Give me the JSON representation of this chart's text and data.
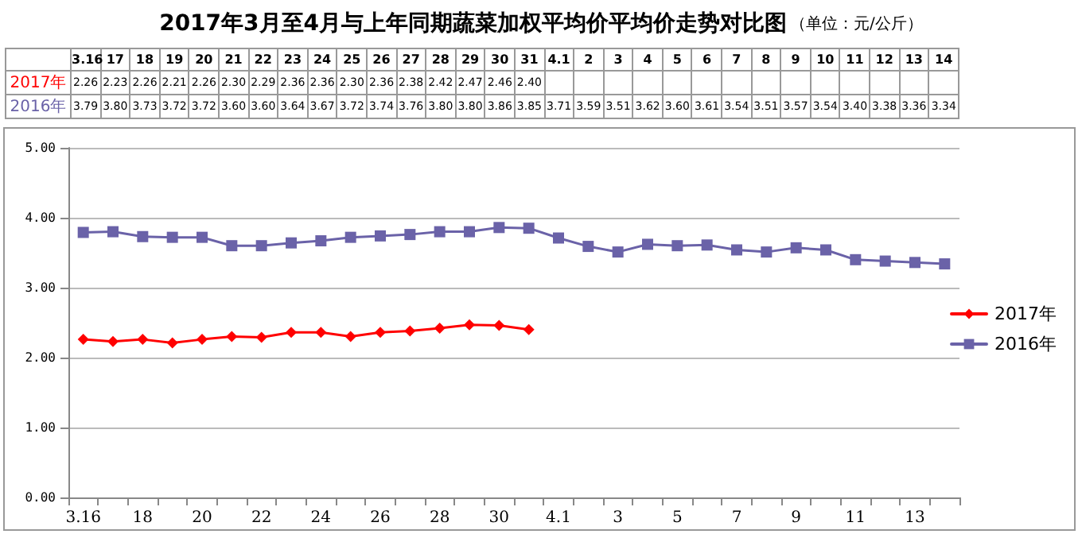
{
  "chart_data": {
    "type": "line",
    "title": "2017年3月至4月与上年同期蔬菜加权平均价平均价走势对比图",
    "subtitle": "（单位：元/公斤）",
    "categories": [
      "3.16",
      "17",
      "18",
      "19",
      "20",
      "21",
      "22",
      "23",
      "24",
      "25",
      "26",
      "27",
      "28",
      "29",
      "30",
      "31",
      "4.1",
      "2",
      "3",
      "4",
      "5",
      "6",
      "7",
      "8",
      "9",
      "10",
      "11",
      "12",
      "13",
      "14"
    ],
    "series": [
      {
        "name": "2017年",
        "color": "#ff0000",
        "marker": "diamond",
        "values": [
          2.26,
          2.23,
          2.26,
          2.21,
          2.26,
          2.3,
          2.29,
          2.36,
          2.36,
          2.3,
          2.36,
          2.38,
          2.42,
          2.47,
          2.46,
          2.4,
          null,
          null,
          null,
          null,
          null,
          null,
          null,
          null,
          null,
          null,
          null,
          null,
          null,
          null
        ],
        "value_labels": [
          "2.26",
          "2.23",
          "2.26",
          "2.21",
          "2.26",
          "2.30",
          "2.29",
          "2.36",
          "2.36",
          "2.30",
          "2.36",
          "2.38",
          "2.42",
          "2.47",
          "2.46",
          "2.40",
          null,
          null,
          null,
          null,
          null,
          null,
          null,
          null,
          null,
          null,
          null,
          null,
          null,
          null
        ]
      },
      {
        "name": "2016年",
        "color": "#6a62a8",
        "marker": "square",
        "values": [
          3.79,
          3.8,
          3.73,
          3.72,
          3.72,
          3.6,
          3.6,
          3.64,
          3.67,
          3.72,
          3.74,
          3.76,
          3.8,
          3.8,
          3.86,
          3.85,
          3.71,
          3.59,
          3.51,
          3.62,
          3.6,
          3.61,
          3.54,
          3.51,
          3.57,
          3.54,
          3.4,
          3.38,
          3.36,
          3.34
        ],
        "value_labels": [
          "3.79",
          "3.80",
          "3.73",
          "3.72",
          "3.72",
          "3.60",
          "3.60",
          "3.64",
          "3.67",
          "3.72",
          "3.74",
          "3.76",
          "3.80",
          "3.80",
          "3.86",
          "3.85",
          "3.71",
          "3.59",
          "3.51",
          "3.62",
          "3.60",
          "3.61",
          "3.54",
          "3.51",
          "3.57",
          "3.54",
          "3.40",
          "3.38",
          "3.36",
          "3.34"
        ]
      }
    ],
    "ylim": [
      0,
      5
    ],
    "yticks": [
      {
        "value": 0,
        "label": "0.00"
      },
      {
        "value": 1,
        "label": "1.00"
      },
      {
        "value": 2,
        "label": "2.00"
      },
      {
        "value": 3,
        "label": "3.00"
      },
      {
        "value": 4,
        "label": "4.00"
      },
      {
        "value": 5,
        "label": "5.00"
      }
    ],
    "grid": "y",
    "legend": "right",
    "line_style": "solid"
  }
}
